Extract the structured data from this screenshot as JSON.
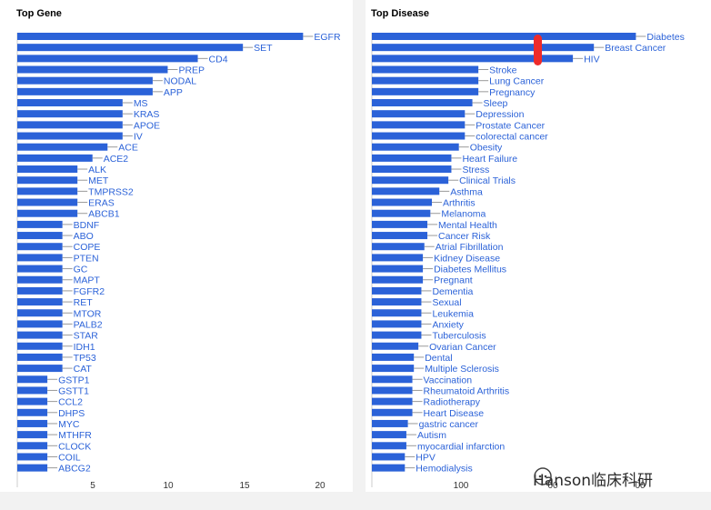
{
  "colors": {
    "bar": "#2b62d8",
    "label": "#2b62d8",
    "axis": "#333333",
    "line": "#999999",
    "marker": "#ee2b2b"
  },
  "chart_data": [
    {
      "type": "bar",
      "title": "Top Gene",
      "orientation": "horizontal",
      "xlim": [
        0,
        22
      ],
      "xticks": [
        "5",
        "10",
        "15",
        "20"
      ],
      "categories": [
        "EGFR",
        "SET",
        "CD4",
        "PREP",
        "NODAL",
        "APP",
        "MS",
        "KRAS",
        "APOE",
        "IV",
        "ACE",
        "ACE2",
        "ALK",
        "MET",
        "TMPRSS2",
        "ERAS",
        "ABCB1",
        "BDNF",
        "ABO",
        "COPE",
        "PTEN",
        "GC",
        "MAPT",
        "FGFR2",
        "RET",
        "MTOR",
        "PALB2",
        "STAR",
        "IDH1",
        "TP53",
        "CAT",
        "GSTP1",
        "GSTT1",
        "CCL2",
        "DHPS",
        "MYC",
        "MTHFR",
        "CLOCK",
        "COIL",
        "ABCG2"
      ],
      "values": [
        19,
        15,
        12,
        10,
        9,
        9,
        7,
        7,
        7,
        7,
        6,
        5,
        4,
        4,
        4,
        4,
        4,
        3,
        3,
        3,
        3,
        3,
        3,
        3,
        3,
        3,
        3,
        3,
        3,
        3,
        3,
        2,
        2,
        2,
        2,
        2,
        2,
        2,
        2,
        2
      ]
    },
    {
      "type": "bar",
      "title": "Top Disease",
      "orientation": "horizontal",
      "xlim": [
        0,
        200
      ],
      "xticks": [
        "100",
        "00",
        "00"
      ],
      "categories": [
        "Diabetes",
        "Breast Cancer",
        "HIV",
        "Stroke",
        "Lung Cancer",
        "Pregnancy",
        "Sleep",
        "Depression",
        "Prostate Cancer",
        "colorectal cancer",
        "Obesity",
        "Heart Failure",
        "Stress",
        "Clinical Trials",
        "Asthma",
        "Arthritis",
        "Melanoma",
        "Mental Health",
        "Cancer Risk",
        "Atrial Fibrillation",
        "Kidney Disease",
        "Diabetes Mellitus",
        "Pregnant",
        "Dementia",
        "Sexual",
        "Leukemia",
        "Anxiety",
        "Tuberculosis",
        "Ovarian Cancer",
        "Dental",
        "Multiple Sclerosis",
        "Vaccination",
        "Rheumatoid Arthritis",
        "Radiotherapy",
        "Heart Disease",
        "gastric cancer",
        "Autism",
        "myocardial infarction",
        "HPV",
        "Hemodialysis"
      ],
      "values": [
        176,
        148,
        134,
        71,
        71,
        71,
        67,
        62,
        62,
        62,
        58,
        53,
        53,
        51,
        45,
        40,
        39,
        37,
        37,
        35,
        34,
        34,
        34,
        33,
        33,
        33,
        33,
        33,
        31,
        28,
        28,
        27,
        27,
        27,
        27,
        24,
        23,
        23,
        22,
        22
      ]
    }
  ],
  "watermark": {
    "text": "Hanson临床科研"
  }
}
